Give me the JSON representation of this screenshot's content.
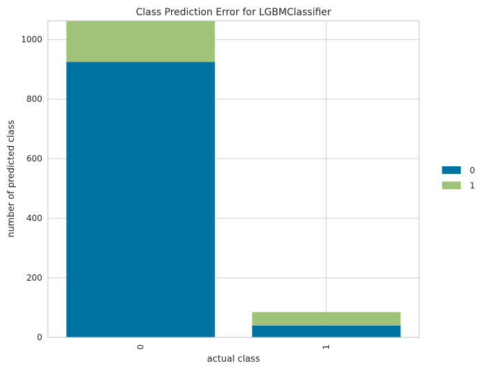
{
  "chart_data": {
    "type": "bar",
    "stacked": true,
    "title": "Class Prediction Error for LGBMClassifier",
    "xlabel": "actual class",
    "ylabel": "number of predicted class",
    "categories": [
      "0",
      "1"
    ],
    "series": [
      {
        "name": "0",
        "color": "#0072a2",
        "values": [
          925,
          40
        ]
      },
      {
        "name": "1",
        "color": "#9fc377",
        "values": [
          138,
          45
        ]
      }
    ],
    "ylim": [
      0,
      1063
    ],
    "yticks": [
      0,
      200,
      400,
      600,
      800,
      1000
    ],
    "grid": true,
    "legend_position": "right"
  }
}
